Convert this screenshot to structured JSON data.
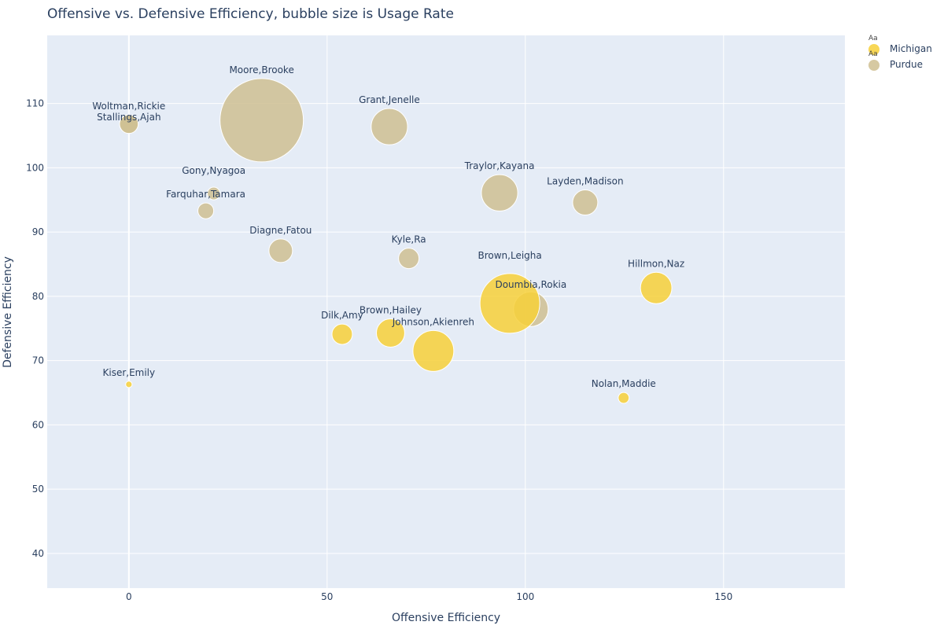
{
  "chart_data": {
    "type": "scatter",
    "title": "Offensive vs. Defensive Efficiency, bubble size is Usage Rate",
    "xlabel": "Offensive Efficiency",
    "ylabel": "Defensive Efficiency",
    "xlim": [
      -20.6,
      180.6
    ],
    "ylim": [
      34.6,
      120.6
    ],
    "xticks": [
      0,
      50,
      100,
      150
    ],
    "yticks": [
      40,
      50,
      60,
      70,
      80,
      90,
      100,
      110
    ],
    "grid": true,
    "legend_position": "top-right",
    "size_metric": "Usage Rate",
    "legend": [
      {
        "name": "Michigan",
        "color": "#f7d038",
        "symbol_text": "Aa"
      },
      {
        "name": "Purdue",
        "color": "#cfc092",
        "symbol_text": "Aa"
      }
    ],
    "series": [
      {
        "name": "Purdue",
        "color": "#cfc092",
        "points": [
          {
            "label": "Moore,Brooke",
            "x": 33.5,
            "y": 107.4,
            "size": 100
          },
          {
            "label": "Grant,Jenelle",
            "x": 65.7,
            "y": 106.4,
            "size": 19
          },
          {
            "label": "Woltman,Rickie",
            "x": 0,
            "y": 106.8,
            "size": 5
          },
          {
            "label": "Stallings,Ajah",
            "x": 0,
            "y": 106.8,
            "size": 5
          },
          {
            "label": "Gony,Nyagoa",
            "x": 21.4,
            "y": 96.0,
            "size": 2.3
          },
          {
            "label": "Farquhar,Tamara",
            "x": 19.4,
            "y": 93.3,
            "size": 3.6
          },
          {
            "label": "Diagne,Fatou",
            "x": 38.3,
            "y": 87.1,
            "size": 8
          },
          {
            "label": "Kyle,Ra",
            "x": 70.6,
            "y": 85.9,
            "size": 6
          },
          {
            "label": "Traylor,Kayana",
            "x": 93.5,
            "y": 96.1,
            "size": 19
          },
          {
            "label": "Layden,Madison",
            "x": 115.1,
            "y": 94.6,
            "size": 9.1
          },
          {
            "label": "Doumbia,Rokia",
            "x": 101.4,
            "y": 78.0,
            "size": 17.2
          }
        ]
      },
      {
        "name": "Michigan",
        "color": "#f7d038",
        "points": [
          {
            "label": "Brown,Leigha",
            "x": 96.1,
            "y": 78.9,
            "size": 51.4
          },
          {
            "label": "Hillmon,Naz",
            "x": 133.0,
            "y": 81.3,
            "size": 14.2
          },
          {
            "label": "Dilk,Amy",
            "x": 53.8,
            "y": 74.1,
            "size": 6
          },
          {
            "label": "Brown,Hailey",
            "x": 66.0,
            "y": 74.3,
            "size": 11.5
          },
          {
            "label": "Johnson,Akienreh",
            "x": 76.8,
            "y": 71.5,
            "size": 24
          },
          {
            "label": "Kiser,Emily",
            "x": 0,
            "y": 66.3,
            "size": 0.6
          },
          {
            "label": "Nolan,Maddie",
            "x": 124.8,
            "y": 64.2,
            "size": 1.7
          }
        ]
      }
    ]
  }
}
